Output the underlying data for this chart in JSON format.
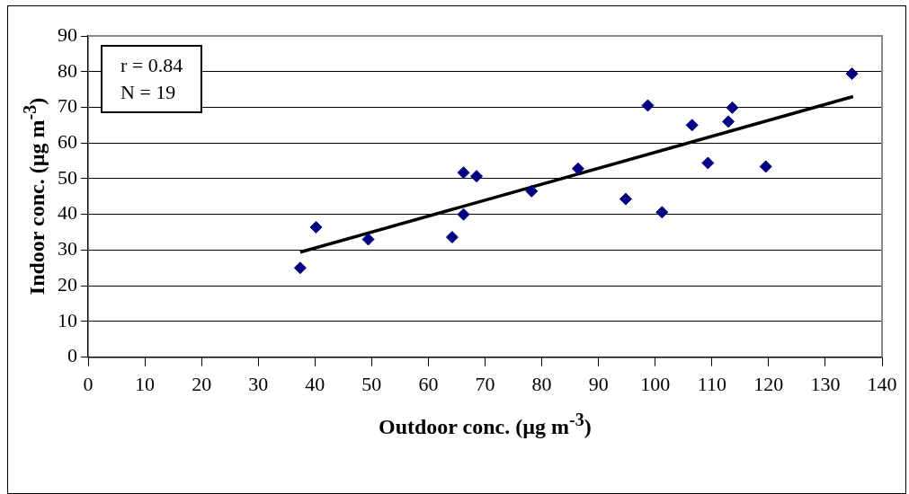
{
  "chart_data": {
    "type": "scatter",
    "xlabel": "Outdoor conc. (µg m$^{-3}$)",
    "ylabel": "Indoor conc. (µg m$^{-3}$)",
    "annotations": [
      "r = 0.84",
      "N = 19"
    ],
    "xlim": [
      0,
      140
    ],
    "xticks": [
      0,
      10,
      20,
      30,
      40,
      50,
      60,
      70,
      80,
      90,
      100,
      110,
      120,
      130,
      140
    ],
    "ylim": [
      0,
      90
    ],
    "yticks": [
      0,
      10,
      20,
      30,
      40,
      50,
      60,
      70,
      80,
      90
    ],
    "grid": "y",
    "legend": false,
    "marker": "diamond",
    "series": [
      {
        "color": "#000080",
        "x": [
          37.4,
          40.2,
          49.4,
          64.2,
          66.2,
          66.2,
          68.5,
          78.2,
          86.4,
          94.8,
          98.7,
          101.2,
          106.5,
          109.3,
          112.9,
          113.6,
          119.5,
          134.7
        ],
        "values": [
          25.0,
          36.4,
          33.0,
          33.6,
          51.7,
          40.0,
          50.7,
          46.5,
          52.8,
          44.3,
          70.5,
          40.6,
          65.0,
          54.4,
          66.0,
          69.9,
          53.4,
          79.4
        ]
      },
      {
        "type": "line",
        "color": "#000000",
        "marker": "none",
        "x": [
          37.4,
          134.9
        ],
        "values": [
          29.4,
          73.0
        ]
      }
    ]
  }
}
